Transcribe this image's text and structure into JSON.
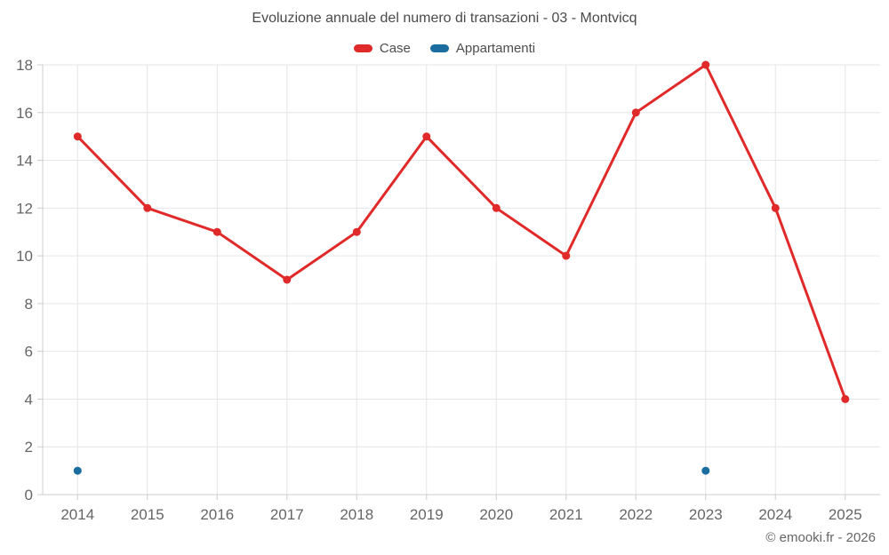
{
  "title": "Evoluzione annuale del numero di transazioni - 03 - Montvicq",
  "legend": [
    {
      "label": "Case",
      "color": "#e02a2a"
    },
    {
      "label": "Appartamenti",
      "color": "#1b6d9f"
    }
  ],
  "footer": {
    "copyright": "© emooki.fr - 2026"
  },
  "chart_data": {
    "type": "line",
    "title": "Evoluzione annuale del numero di transazioni - 03 - Montvicq",
    "categories": [
      2014,
      2015,
      2016,
      2017,
      2018,
      2019,
      2020,
      2021,
      2022,
      2023,
      2024,
      2025
    ],
    "series": [
      {
        "name": "Case",
        "type": "line",
        "color": "#e02a2a",
        "values": [
          15,
          12,
          11,
          9,
          11,
          15,
          12,
          10,
          16,
          18,
          12,
          4
        ]
      },
      {
        "name": "Appartamenti",
        "type": "scatter",
        "color": "#1b6d9f",
        "values": [
          1,
          null,
          null,
          null,
          null,
          null,
          null,
          null,
          null,
          1,
          null,
          null
        ]
      }
    ],
    "xlabel": "",
    "ylabel": "",
    "ylim": [
      0,
      18
    ],
    "ytick_step": 2,
    "grid": true,
    "legend_position": "top",
    "axis_color": "#cccccc",
    "grid_color": "#e6e6e6",
    "label_color": "#666666"
  }
}
